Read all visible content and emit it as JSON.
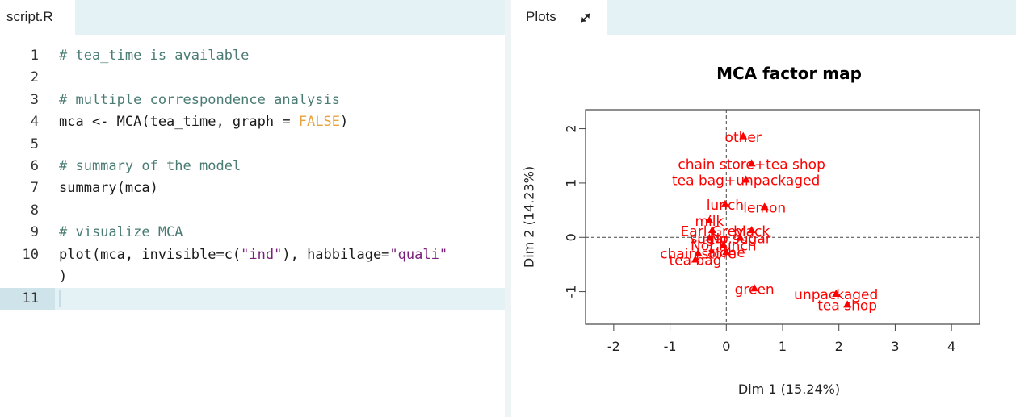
{
  "editor": {
    "tab_label": "script.R",
    "lines": [
      {
        "num": "1",
        "tokens": [
          {
            "t": "# tea_time is available",
            "c": "comment"
          }
        ]
      },
      {
        "num": "2",
        "tokens": []
      },
      {
        "num": "3",
        "tokens": [
          {
            "t": "# multiple correspondence analysis",
            "c": "comment"
          }
        ]
      },
      {
        "num": "4",
        "tokens": [
          {
            "t": "mca <- MCA(tea_time, graph = ",
            "c": ""
          },
          {
            "t": "FALSE",
            "c": "bool"
          },
          {
            "t": ")",
            "c": ""
          }
        ]
      },
      {
        "num": "5",
        "tokens": []
      },
      {
        "num": "6",
        "tokens": [
          {
            "t": "# summary of the model",
            "c": "comment"
          }
        ]
      },
      {
        "num": "7",
        "tokens": [
          {
            "t": "summary(mca)",
            "c": ""
          }
        ]
      },
      {
        "num": "8",
        "tokens": []
      },
      {
        "num": "9",
        "tokens": [
          {
            "t": "# visualize MCA",
            "c": "comment"
          }
        ]
      },
      {
        "num": "10",
        "tokens": [
          {
            "t": "plot(mca, invisible=c(",
            "c": ""
          },
          {
            "t": "\"ind\"",
            "c": "str"
          },
          {
            "t": "), habbilage=",
            "c": ""
          },
          {
            "t": "\"quali\"",
            "c": "str"
          }
        ]
      },
      {
        "num": "",
        "tokens": [
          {
            "t": ")",
            "c": ""
          }
        ]
      },
      {
        "num": "11",
        "tokens": []
      }
    ]
  },
  "plots": {
    "tab_label": "Plots",
    "expand_icon": "expand-icon",
    "point_color": "#ff0000"
  },
  "chart_data": {
    "type": "scatter",
    "title": "MCA factor map",
    "xlabel": "Dim 1 (15.24%)",
    "ylabel": "Dim 2 (14.23%)",
    "xlim": [
      -2.5,
      4.5
    ],
    "ylim": [
      -1.6,
      2.35
    ],
    "xticks": [
      -2,
      -1,
      0,
      1,
      2,
      3,
      4
    ],
    "yticks": [
      -1,
      0,
      1,
      2
    ],
    "reference_lines": {
      "x": 0,
      "y": 0,
      "style": "dashed"
    },
    "points": [
      {
        "label": "other",
        "x": 0.3,
        "y": 1.85
      },
      {
        "label": "chain store+tea shop",
        "x": 0.45,
        "y": 1.35
      },
      {
        "label": "tea bag+unpackaged",
        "x": 0.35,
        "y": 1.05
      },
      {
        "label": "lunch",
        "x": -0.02,
        "y": 0.6
      },
      {
        "label": "lemon",
        "x": 0.68,
        "y": 0.55
      },
      {
        "label": "milk",
        "x": -0.3,
        "y": 0.3
      },
      {
        "label": "Earl Grey",
        "x": -0.25,
        "y": 0.12
      },
      {
        "label": "black",
        "x": 0.45,
        "y": 0.12
      },
      {
        "label": "sugar",
        "x": -0.3,
        "y": -0.02
      },
      {
        "label": "No.sugar",
        "x": 0.25,
        "y": -0.02
      },
      {
        "label": "Not.lunch",
        "x": -0.05,
        "y": -0.15
      },
      {
        "label": "chain store",
        "x": -0.5,
        "y": -0.3
      },
      {
        "label": "alone",
        "x": 0.0,
        "y": -0.28
      },
      {
        "label": "tea bag",
        "x": -0.55,
        "y": -0.42
      },
      {
        "label": "green",
        "x": 0.5,
        "y": -0.95
      },
      {
        "label": "unpackaged",
        "x": 1.95,
        "y": -1.05
      },
      {
        "label": "tea shop",
        "x": 2.15,
        "y": -1.25
      }
    ]
  }
}
